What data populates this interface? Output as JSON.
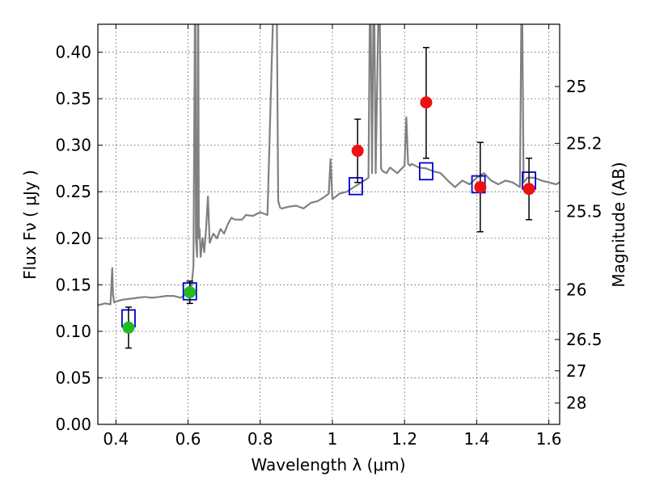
{
  "chart_data": {
    "type": "scatter",
    "title": "",
    "xlabel": "Wavelength  λ (μm)",
    "ylabel": "Flux  Fν  ( μJy )",
    "y2label": "Magnitude (AB)",
    "xlim": [
      0.35,
      1.63
    ],
    "ylim": [
      0.0,
      0.43
    ],
    "grid": true,
    "x_ticks": [
      0.4,
      0.6,
      0.8,
      1.0,
      1.2,
      1.4,
      1.6
    ],
    "x_tick_labels": [
      "0.4",
      "0.6",
      "0.8",
      "1",
      "1.2",
      "1.4",
      "1.6"
    ],
    "y_ticks": [
      0.0,
      0.05,
      0.1,
      0.15,
      0.2,
      0.25,
      0.3,
      0.35,
      0.4
    ],
    "y_tick_labels": [
      "0.00",
      "0.05",
      "0.10",
      "0.15",
      "0.20",
      "0.25",
      "0.30",
      "0.35",
      "0.40"
    ],
    "y2_ticks": [
      {
        "mag": 25,
        "label": "25"
      },
      {
        "mag": 25.2,
        "label": "25.2"
      },
      {
        "mag": 25.5,
        "label": "25.5"
      },
      {
        "mag": 26,
        "label": "26"
      },
      {
        "mag": 26.5,
        "label": "26.5"
      },
      {
        "mag": 27,
        "label": "27"
      },
      {
        "mag": 28,
        "label": "28"
      }
    ],
    "colors": {
      "spectrum": "#808080",
      "model_box": "#0000cc",
      "optical_points": "#22bb22",
      "nir_points": "#ee1111",
      "errorbar": "#000000"
    },
    "spectrum": {
      "x": [
        0.35,
        0.37,
        0.385,
        0.39,
        0.392,
        0.395,
        0.4,
        0.42,
        0.44,
        0.46,
        0.48,
        0.5,
        0.52,
        0.54,
        0.56,
        0.58,
        0.6,
        0.61,
        0.615,
        0.62,
        0.622,
        0.625,
        0.628,
        0.63,
        0.632,
        0.635,
        0.64,
        0.645,
        0.65,
        0.655,
        0.66,
        0.665,
        0.67,
        0.68,
        0.69,
        0.7,
        0.71,
        0.72,
        0.73,
        0.74,
        0.75,
        0.76,
        0.78,
        0.8,
        0.82,
        0.84,
        0.845,
        0.85,
        0.855,
        0.86,
        0.88,
        0.9,
        0.92,
        0.94,
        0.96,
        0.98,
        0.99,
        0.995,
        1.0,
        1.02,
        1.04,
        1.06,
        1.08,
        1.1,
        1.105,
        1.11,
        1.115,
        1.12,
        1.13,
        1.135,
        1.14,
        1.15,
        1.16,
        1.18,
        1.2,
        1.205,
        1.21,
        1.215,
        1.22,
        1.24,
        1.26,
        1.28,
        1.3,
        1.32,
        1.34,
        1.36,
        1.38,
        1.4,
        1.42,
        1.44,
        1.46,
        1.48,
        1.5,
        1.52,
        1.525,
        1.53,
        1.535,
        1.54,
        1.56,
        1.58,
        1.6,
        1.62,
        1.63
      ],
      "y": [
        0.128,
        0.13,
        0.129,
        0.168,
        0.14,
        0.131,
        0.132,
        0.134,
        0.135,
        0.136,
        0.137,
        0.136,
        0.137,
        0.138,
        0.138,
        0.136,
        0.142,
        0.15,
        0.17,
        0.5,
        0.2,
        0.18,
        0.5,
        0.2,
        0.21,
        0.18,
        0.2,
        0.185,
        0.21,
        0.245,
        0.195,
        0.2,
        0.205,
        0.2,
        0.21,
        0.205,
        0.215,
        0.222,
        0.22,
        0.22,
        0.22,
        0.225,
        0.224,
        0.228,
        0.225,
        0.5,
        0.5,
        0.24,
        0.233,
        0.232,
        0.234,
        0.235,
        0.232,
        0.238,
        0.24,
        0.245,
        0.248,
        0.285,
        0.242,
        0.248,
        0.25,
        0.255,
        0.26,
        0.265,
        0.5,
        0.27,
        0.5,
        0.27,
        0.5,
        0.275,
        0.272,
        0.27,
        0.276,
        0.27,
        0.278,
        0.33,
        0.28,
        0.278,
        0.28,
        0.276,
        0.275,
        0.272,
        0.27,
        0.262,
        0.255,
        0.262,
        0.258,
        0.265,
        0.27,
        0.262,
        0.258,
        0.262,
        0.26,
        0.255,
        0.5,
        0.26,
        0.262,
        0.265,
        0.265,
        0.262,
        0.26,
        0.258,
        0.26
      ]
    },
    "optical_points": {
      "x": [
        0.435,
        0.605
      ],
      "y": [
        0.104,
        0.142
      ],
      "yerr_low": [
        0.022,
        0.012
      ],
      "yerr_high": [
        0.022,
        0.012
      ]
    },
    "nir_points": {
      "x": [
        1.07,
        1.26,
        1.41,
        1.545
      ],
      "y": [
        0.294,
        0.346,
        0.255,
        0.253
      ],
      "yerr_low": [
        0.034,
        0.06,
        0.048,
        0.033
      ],
      "yerr_high": [
        0.034,
        0.059,
        0.048,
        0.033
      ]
    },
    "model_boxes": {
      "x": [
        0.435,
        0.605,
        1.065,
        1.26,
        1.405,
        1.545
      ],
      "y": [
        0.114,
        0.143,
        0.256,
        0.272,
        0.258,
        0.262
      ],
      "halfwidth": [
        0.018,
        0.018,
        0.018,
        0.018,
        0.018,
        0.018
      ],
      "halfheight": [
        0.009,
        0.009,
        0.009,
        0.009,
        0.009,
        0.009
      ]
    }
  }
}
